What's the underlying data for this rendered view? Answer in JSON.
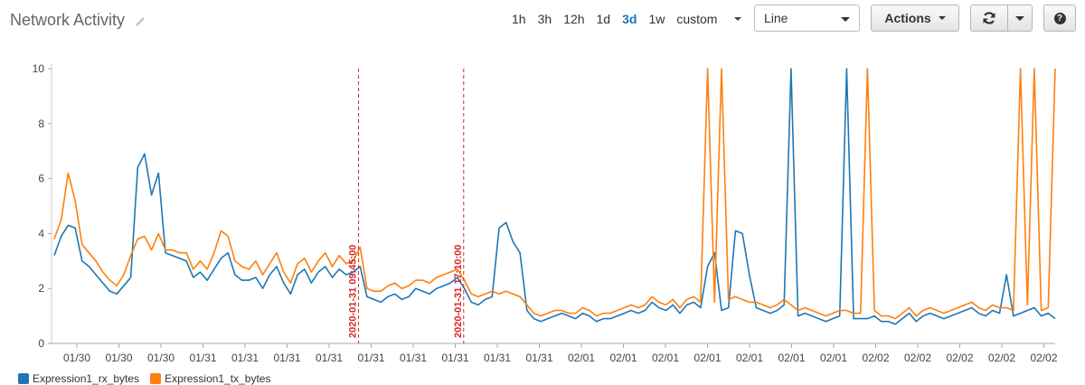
{
  "header": {
    "title": "Network Activity",
    "edit_icon": "pencil-icon"
  },
  "time_ranges": {
    "options": [
      "1h",
      "3h",
      "12h",
      "1d",
      "3d",
      "1w"
    ],
    "active": "3d",
    "custom_label": "custom"
  },
  "view_select": {
    "value": "Line"
  },
  "toolbar": {
    "actions_label": "Actions",
    "refresh_icon": "refresh-icon",
    "dropdown_icon": "chevron-down-icon",
    "help_label": "?",
    "help_icon": "help-icon"
  },
  "chart_data": {
    "type": "line",
    "ylim": [
      0,
      10
    ],
    "yticks": [
      0,
      2,
      4,
      6,
      8,
      10
    ],
    "x_tick_labels": [
      "01/30",
      "01/30",
      "01/30",
      "01/31",
      "01/31",
      "01/31",
      "01/31",
      "01/31",
      "01/31",
      "01/31",
      "01/31",
      "01/31",
      "02/01",
      "02/01",
      "02/01",
      "02/01",
      "02/01",
      "02/01",
      "02/01",
      "02/02",
      "02/02",
      "02/02",
      "02/02",
      "02/02"
    ],
    "grid": false,
    "legend_position": "bottom-left",
    "annotations": [
      {
        "label": "2020-01-31 09:45:00",
        "color": "#d62728",
        "style": "dashed",
        "after_tick": 6.7
      },
      {
        "label": "2020-01-31 17:10:00",
        "color": "#d62728",
        "style": "dashed",
        "after_tick": 9.2
      }
    ],
    "series": [
      {
        "name": "Expression1_rx_bytes",
        "color": "#1f77b4",
        "values": [
          3.2,
          3.9,
          4.3,
          4.2,
          3.0,
          2.8,
          2.5,
          2.2,
          1.9,
          1.8,
          2.1,
          2.4,
          6.4,
          6.9,
          5.4,
          6.2,
          3.3,
          3.2,
          3.1,
          3.0,
          2.4,
          2.6,
          2.3,
          2.7,
          3.1,
          3.3,
          2.5,
          2.3,
          2.3,
          2.4,
          2.0,
          2.5,
          2.8,
          2.2,
          1.8,
          2.5,
          2.7,
          2.2,
          2.6,
          2.8,
          2.4,
          2.7,
          2.5,
          2.6,
          2.8,
          1.7,
          1.6,
          1.5,
          1.7,
          1.8,
          1.6,
          1.7,
          2.0,
          1.9,
          1.8,
          2.0,
          2.1,
          2.2,
          2.4,
          2.0,
          1.5,
          1.4,
          1.6,
          1.7,
          4.2,
          4.4,
          3.7,
          3.3,
          1.2,
          0.9,
          0.8,
          0.9,
          1.0,
          1.1,
          1.0,
          0.9,
          1.1,
          1.0,
          0.8,
          0.9,
          0.9,
          1.0,
          1.1,
          1.2,
          1.1,
          1.2,
          1.5,
          1.3,
          1.2,
          1.4,
          1.1,
          1.4,
          1.5,
          1.3,
          2.8,
          3.3,
          1.2,
          1.3,
          4.1,
          4.0,
          2.5,
          1.3,
          1.2,
          1.1,
          1.2,
          1.4,
          10.0,
          1.0,
          1.1,
          1.0,
          0.9,
          0.8,
          0.9,
          1.0,
          10.0,
          0.9,
          0.9,
          0.9,
          1.0,
          0.8,
          0.8,
          0.7,
          0.9,
          1.1,
          0.8,
          1.0,
          1.1,
          1.0,
          0.9,
          1.0,
          1.1,
          1.2,
          1.3,
          1.1,
          1.0,
          1.2,
          1.1,
          2.5,
          1.0,
          1.1,
          1.2,
          1.3,
          1.0,
          1.1,
          0.9
        ]
      },
      {
        "name": "Expression1_tx_bytes",
        "color": "#ff7f0e",
        "values": [
          3.8,
          4.5,
          6.2,
          5.2,
          3.6,
          3.3,
          3.0,
          2.6,
          2.3,
          2.1,
          2.5,
          3.2,
          3.8,
          3.9,
          3.4,
          4.0,
          3.4,
          3.4,
          3.3,
          3.3,
          2.7,
          3.0,
          2.7,
          3.3,
          4.1,
          3.9,
          3.0,
          2.8,
          2.7,
          3.0,
          2.5,
          2.9,
          3.3,
          2.6,
          2.2,
          2.9,
          3.1,
          2.6,
          3.0,
          3.3,
          2.8,
          3.2,
          2.9,
          3.0,
          3.5,
          2.0,
          1.9,
          1.9,
          2.1,
          2.2,
          2.0,
          2.1,
          2.3,
          2.3,
          2.2,
          2.4,
          2.5,
          2.6,
          2.7,
          2.3,
          1.8,
          1.7,
          1.8,
          1.9,
          1.8,
          1.9,
          1.8,
          1.7,
          1.4,
          1.1,
          1.0,
          1.1,
          1.2,
          1.2,
          1.1,
          1.1,
          1.3,
          1.2,
          1.0,
          1.1,
          1.1,
          1.2,
          1.3,
          1.4,
          1.3,
          1.4,
          1.7,
          1.5,
          1.4,
          1.6,
          1.3,
          1.6,
          1.7,
          1.5,
          10.0,
          1.5,
          10.0,
          1.6,
          1.7,
          1.6,
          1.5,
          1.5,
          1.4,
          1.3,
          1.4,
          1.6,
          1.4,
          1.2,
          1.3,
          1.2,
          1.1,
          1.0,
          1.1,
          1.2,
          1.2,
          1.1,
          1.1,
          10.0,
          1.2,
          1.0,
          1.0,
          0.9,
          1.1,
          1.3,
          1.0,
          1.2,
          1.3,
          1.2,
          1.1,
          1.2,
          1.3,
          1.4,
          1.5,
          1.3,
          1.2,
          1.4,
          1.3,
          1.3,
          1.2,
          10.0,
          1.4,
          10.0,
          1.2,
          1.3,
          10.0
        ]
      }
    ]
  }
}
